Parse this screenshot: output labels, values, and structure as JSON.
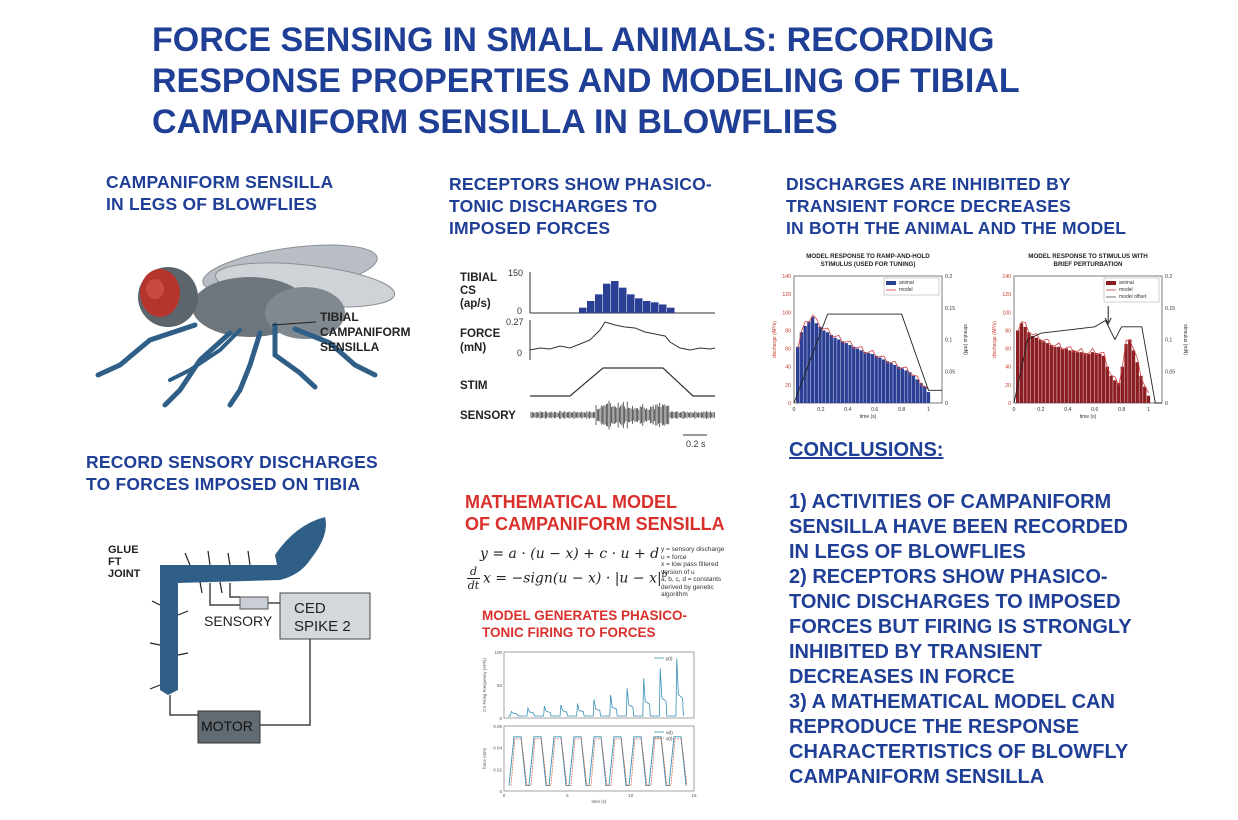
{
  "title": {
    "line1": "FORCE SENSING IN SMALL ANIMALS: RECORDING",
    "line2": "RESPONSE PROPERTIES AND MODELING OF TIBIAL",
    "line3": "CAMPANIFORM SENSILLA IN BLOWFLIES"
  },
  "sections": {
    "campaniform": {
      "line1": "CAMPANIFORM SENSILLA",
      "line2": "IN LEGS OF BLOWFLIES"
    },
    "fly_label": {
      "line1": "TIBIAL",
      "line2": "CAMPANIFORM",
      "line3": "SENSILLA"
    },
    "receptors": {
      "line1": "RECEPTORS SHOW PHASICO-",
      "line2": "TONIC DISCHARGES TO",
      "line3": "IMPOSED FORCES"
    },
    "discharges": {
      "line1": "DISCHARGES ARE INHIBITED BY",
      "line2": "TRANSIENT FORCE DECREASES",
      "line3": "IN BOTH THE ANIMAL AND THE MODEL"
    },
    "record": {
      "line1": "RECORD SENSORY DISCHARGES",
      "line2": "TO FORCES IMPOSED ON TIBIA"
    },
    "math": {
      "line1": "MATHEMATICAL MODEL",
      "line2": "OF CAMPANIFORM SENSILLA"
    },
    "model_gen": {
      "line1": "MODEL GENERATES PHASICO-",
      "line2": "TONIC FIRING TO FORCES"
    }
  },
  "setup": {
    "glue1": "GLUE",
    "glue2": "FT",
    "glue3": "JOINT",
    "sensory": "SENSORY",
    "ced1": "CED",
    "ced2": "SPIKE 2",
    "motor": "MOTOR"
  },
  "recording": {
    "tibial1": "TIBIAL",
    "tibial2": "CS",
    "tibial3": "(ap/s)",
    "tick150": "150",
    "tick0a": "0",
    "force1": "FORCE",
    "force2": "(mN)",
    "tick027": "0.27",
    "tick0b": "0",
    "stim": "STIM",
    "sensory": "SENSORY",
    "scale": "0.2 s"
  },
  "equations": {
    "eq1": "y = a · (u − x) + c · u + d",
    "eq2": "x = −sign(u − x) · |u − x|",
    "exp": "b",
    "d_top": "d",
    "d_bot": "dt",
    "legend": [
      "y = sensory discharge",
      "u = force",
      "x = low pass filtered",
      "version of u",
      "a, b, c, d = constants",
      "derived by genetic",
      "algorithm"
    ]
  },
  "chart_data": [
    {
      "type": "bar",
      "title": "MODEL RESPONSE TO RAMP-AND-HOLD STIMULUS (USED FOR TUNING)",
      "xlabel": "time (s)",
      "ylabel": "discharge (AP/s)",
      "y2label": "stimulus (mN)",
      "ylim": [
        0,
        140
      ],
      "y2lim": [
        0,
        0.2
      ],
      "xlim": [
        0,
        1.1
      ],
      "xticks": [
        "0",
        "0.2",
        "0.4",
        "0.6",
        "0.8",
        "1"
      ],
      "yticks": [
        "0",
        "20",
        "40",
        "60",
        "80",
        "100",
        "120",
        "140"
      ],
      "y2ticks": [
        "0",
        "0.05",
        "0.1",
        "0.15",
        "0.2"
      ],
      "legend": [
        "animal",
        "model"
      ],
      "colors": {
        "bars": "#2b3f94",
        "model": "#d04040",
        "stim": "#222222"
      },
      "values": [
        62,
        78,
        85,
        90,
        95,
        88,
        84,
        80,
        78,
        75,
        72,
        70,
        68,
        66,
        64,
        62,
        60,
        58,
        56,
        55,
        54,
        52,
        50,
        48,
        46,
        44,
        42,
        40,
        38,
        36,
        34,
        30,
        26,
        22,
        18,
        12
      ]
    },
    {
      "type": "bar",
      "title": "MODEL RESPONSE TO STIMULUS WITH BRIEF PERTURBATION",
      "xlabel": "time (s)",
      "ylabel": "discharge (AP/s)",
      "y2label": "stimulus (mN)",
      "ylim": [
        0,
        140
      ],
      "y2lim": [
        0,
        0.2
      ],
      "xlim": [
        0,
        1.1
      ],
      "xticks": [
        "0",
        "0.2",
        "0.4",
        "0.6",
        "0.8",
        "1"
      ],
      "yticks": [
        "0",
        "20",
        "40",
        "60",
        "80",
        "100",
        "120",
        "140"
      ],
      "y2ticks": [
        "0",
        "0.05",
        "0.1",
        "0.15",
        "0.2"
      ],
      "legend": [
        "animal",
        "model",
        "model offset"
      ],
      "colors": {
        "bars": "#8b1e22",
        "model": "#d04040",
        "stim": "#222222"
      },
      "values": [
        80,
        88,
        84,
        78,
        74,
        72,
        70,
        68,
        66,
        64,
        62,
        62,
        60,
        60,
        58,
        58,
        56,
        56,
        55,
        54,
        56,
        55,
        54,
        52,
        40,
        30,
        25,
        22,
        40,
        65,
        70,
        58,
        45,
        30,
        18,
        8
      ]
    },
    {
      "type": "line",
      "ylabel": "CS Firing Frequency (AP/s)",
      "legend": [
        "y(t)"
      ],
      "xlim": [
        0,
        15
      ],
      "ylim": [
        0,
        100
      ],
      "yticks": [
        "0",
        "50",
        "100"
      ],
      "peaks": [
        10,
        15,
        18,
        20,
        22,
        28,
        35,
        45,
        60,
        75,
        90
      ]
    },
    {
      "type": "line",
      "ylabel": "force (mN)",
      "xlabel": "time (s)",
      "legend": [
        "u(t)",
        "x(t)"
      ],
      "xlim": [
        0,
        15
      ],
      "ylim": [
        0,
        0.06
      ],
      "xticks": [
        "0",
        "5",
        "10",
        "15"
      ],
      "yticks": [
        "0",
        "0.02",
        "0.04",
        "0.06"
      ],
      "cycles": 9
    }
  ],
  "conclusions": {
    "heading": "CONCLUSIONS:",
    "lines": [
      "1) ACTIVITIES OF CAMPANIFORM",
      "SENSILLA HAVE BEEN RECORDED",
      "IN LEGS OF BLOWFLIES",
      "2) RECEPTORS SHOW PHASICO-",
      "TONIC DISCHARGES TO IMPOSED",
      "FORCES BUT FIRING IS STRONGLY",
      "INHIBITED BY TRANSIENT",
      "DECREASES IN FORCE",
      "3) A MATHEMATICAL MODEL CAN",
      "REPRODUCE THE RESPONSE",
      "CHARACTERTISTICS OF BLOWFLY",
      "CAMPANIFORM SENSILLA"
    ]
  }
}
